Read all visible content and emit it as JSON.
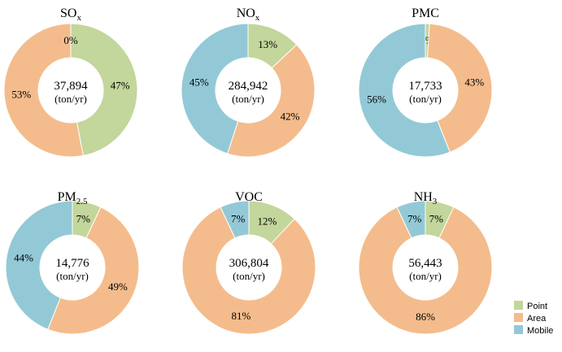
{
  "chart_data": {
    "type": "pie",
    "categories": [
      "Point",
      "Area",
      "Mobile"
    ],
    "colors": {
      "Point": "#c3d69b",
      "Area": "#f4bc8c",
      "Mobile": "#93c9d6"
    },
    "legend": {
      "placement": "bottom-right",
      "items": [
        "Point",
        "Area",
        "Mobile"
      ]
    },
    "unit": "(ton/yr)",
    "charts": [
      {
        "title": "SO",
        "title_sub": "x",
        "total": "37,894",
        "values": [
          47,
          53,
          0
        ],
        "labels": [
          "47%",
          "53%",
          "0%"
        ]
      },
      {
        "title": "NO",
        "title_sub": "x",
        "total": "284,942",
        "values": [
          13,
          42,
          45
        ],
        "labels": [
          "13%",
          "42%",
          "45%"
        ]
      },
      {
        "title": "PMC",
        "title_sub": "",
        "total": "17,733",
        "values": [
          1,
          43,
          56
        ],
        "labels": [
          "1%",
          "43%",
          "56%"
        ]
      },
      {
        "title": "PM",
        "title_sub": "2.5",
        "total": "14,776",
        "values": [
          7,
          49,
          44
        ],
        "labels": [
          "7%",
          "49%",
          "44%"
        ]
      },
      {
        "title": "VOC",
        "title_sub": "",
        "total": "306,804",
        "values": [
          12,
          81,
          7
        ],
        "labels": [
          "12%",
          "81%",
          "7%"
        ]
      },
      {
        "title": "NH",
        "title_sub": "3",
        "total": "56,443",
        "values": [
          7,
          86,
          7
        ],
        "labels": [
          "7%",
          "86%",
          "7%"
        ]
      }
    ]
  }
}
